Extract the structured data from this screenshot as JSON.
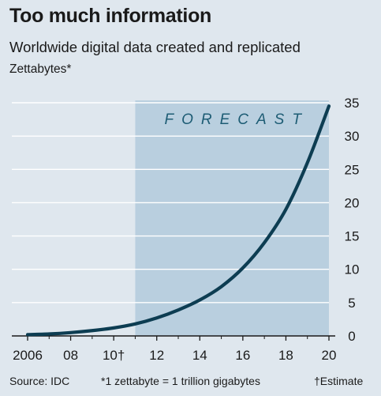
{
  "title": "Too much information",
  "subtitle": "Worldwide digital data created and replicated",
  "unit_label": "Zettabytes*",
  "forecast_label": "FORECAST",
  "footer": {
    "source": "Source: IDC",
    "note": "*1 zettabyte = 1 trillion gigabytes",
    "dagger_note": "†Estimate"
  },
  "colors": {
    "background": "#dfe7ee",
    "forecast_band": "#b9cfdf",
    "line": "#0d3d52",
    "forecast_text": "#1d5c74",
    "grid": "#ffffff"
  },
  "chart_data": {
    "type": "line",
    "title": "Too much information",
    "subtitle": "Worldwide digital data created and replicated",
    "ylabel": "Zettabytes*",
    "xlabel": "",
    "xlim": [
      2006,
      2020
    ],
    "ylim": [
      0,
      35
    ],
    "x_ticks": [
      {
        "value": 2006,
        "label": "2006"
      },
      {
        "value": 2008,
        "label": "08"
      },
      {
        "value": 2010,
        "label": "10†"
      },
      {
        "value": 2012,
        "label": "12"
      },
      {
        "value": 2014,
        "label": "14"
      },
      {
        "value": 2016,
        "label": "16"
      },
      {
        "value": 2018,
        "label": "18"
      },
      {
        "value": 2020,
        "label": "20"
      }
    ],
    "y_ticks": [
      0,
      5,
      10,
      15,
      20,
      25,
      30,
      35
    ],
    "y_axis_side": "right",
    "grid": "horizontal",
    "forecast_region": {
      "from": 2011,
      "to": 2020,
      "label": "FORECAST"
    },
    "series": [
      {
        "x": [
          2006,
          2007,
          2008,
          2009,
          2010,
          2011,
          2012,
          2013,
          2014,
          2015,
          2016,
          2017,
          2018,
          2019,
          2020
        ],
        "values": [
          0.2,
          0.3,
          0.5,
          0.8,
          1.2,
          1.8,
          2.7,
          3.9,
          5.4,
          7.4,
          10.2,
          14.0,
          19.0,
          26.0,
          34.5
        ]
      }
    ]
  }
}
